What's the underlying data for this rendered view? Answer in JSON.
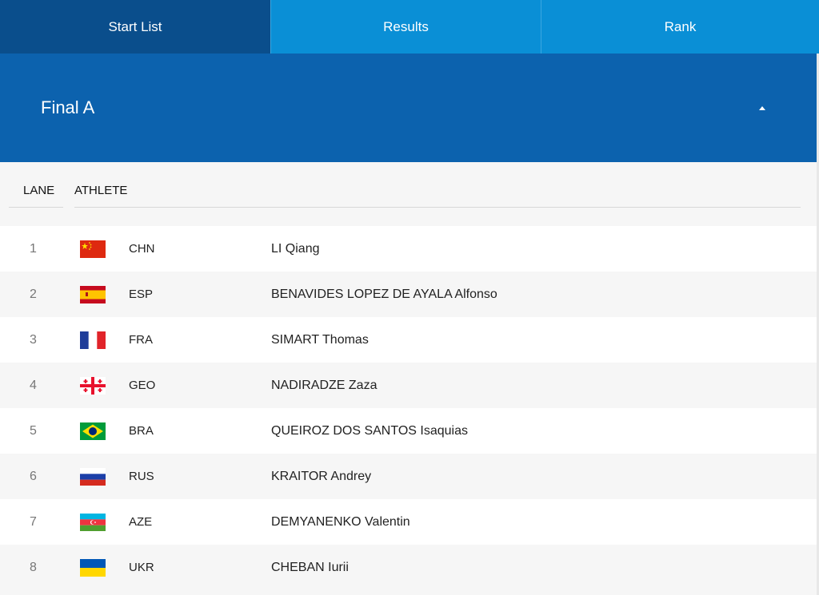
{
  "tabs": [
    {
      "label": "Start List",
      "active": true
    },
    {
      "label": "Results",
      "active": false
    },
    {
      "label": "Rank",
      "active": false
    }
  ],
  "event": {
    "title": "Final A",
    "toggle_icon": "triangle-up-icon"
  },
  "table": {
    "headers": {
      "lane": "LANE",
      "athlete": "ATHLETE"
    },
    "rows": [
      {
        "lane": "1",
        "noc": "CHN",
        "name": "LI Qiang",
        "flag_icon": "flag-chn-icon"
      },
      {
        "lane": "2",
        "noc": "ESP",
        "name": "BENAVIDES LOPEZ DE AYALA Alfonso",
        "flag_icon": "flag-esp-icon"
      },
      {
        "lane": "3",
        "noc": "FRA",
        "name": "SIMART Thomas",
        "flag_icon": "flag-fra-icon"
      },
      {
        "lane": "4",
        "noc": "GEO",
        "name": "NADIRADZE Zaza",
        "flag_icon": "flag-geo-icon"
      },
      {
        "lane": "5",
        "noc": "BRA",
        "name": "QUEIROZ DOS SANTOS Isaquias",
        "flag_icon": "flag-bra-icon"
      },
      {
        "lane": "6",
        "noc": "RUS",
        "name": "KRAITOR Andrey",
        "flag_icon": "flag-rus-icon"
      },
      {
        "lane": "7",
        "noc": "AZE",
        "name": "DEMYANENKO Valentin",
        "flag_icon": "flag-aze-icon"
      },
      {
        "lane": "8",
        "noc": "UKR",
        "name": "CHEBAN Iurii",
        "flag_icon": "flag-ukr-icon"
      }
    ]
  },
  "colors": {
    "tab_active": "#0a4e8c",
    "tab_inactive": "#0a8fd6",
    "header_band": "#0c62ae"
  }
}
